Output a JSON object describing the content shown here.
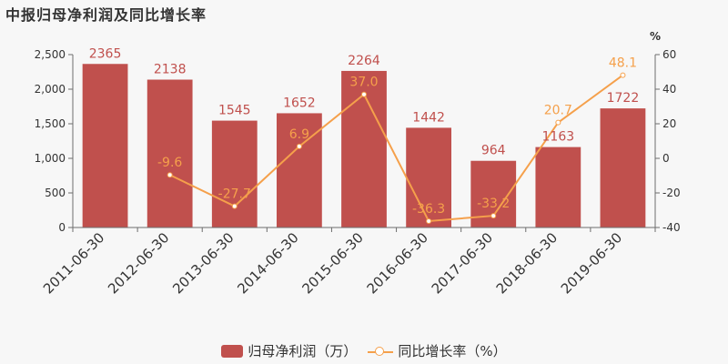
{
  "page": {
    "title": "中报归母净利润及同比增长率"
  },
  "chart_data": {
    "type": "bar",
    "title": "中报归母净利润及同比增长率",
    "categories": [
      "2011-06-30",
      "2012-06-30",
      "2013-06-30",
      "2014-06-30",
      "2015-06-30",
      "2016-06-30",
      "2017-06-30",
      "2018-06-30",
      "2019-06-30"
    ],
    "series": [
      {
        "name": "归母净利润（万）",
        "type": "bar",
        "axis": "left",
        "color": "#c0504d",
        "values": [
          2365,
          2138,
          1545,
          1652,
          2264,
          1442,
          964,
          1163,
          1722
        ],
        "labels": [
          "2365",
          "2138",
          "1545",
          "1652",
          "2264",
          "1442",
          "964",
          "1163",
          "1722"
        ]
      },
      {
        "name": "同比增长率（%）",
        "type": "line",
        "axis": "right",
        "color": "#f5a04b",
        "values": [
          null,
          -9.6,
          -27.7,
          6.9,
          37.0,
          -36.3,
          -33.2,
          20.7,
          48.1
        ],
        "labels": [
          "",
          "-9.6",
          "-27.7",
          "6.9",
          "37.0",
          "-36.3",
          "-33.2",
          "20.7",
          "48.1"
        ]
      }
    ],
    "y_left": {
      "range": [
        0,
        2500
      ],
      "ticks": [
        0,
        500,
        1000,
        1500,
        2000,
        2500
      ],
      "tick_labels": [
        "0",
        "500",
        "1,000",
        "1,500",
        "2,000",
        "2,500"
      ]
    },
    "y_right": {
      "unit": "%",
      "range": [
        -40,
        60
      ],
      "ticks": [
        -40,
        -20,
        0,
        20,
        40,
        60
      ],
      "tick_labels": [
        "-40",
        "-20",
        "0",
        "20",
        "40",
        "60"
      ]
    },
    "grid": false,
    "legend_position": "bottom"
  }
}
